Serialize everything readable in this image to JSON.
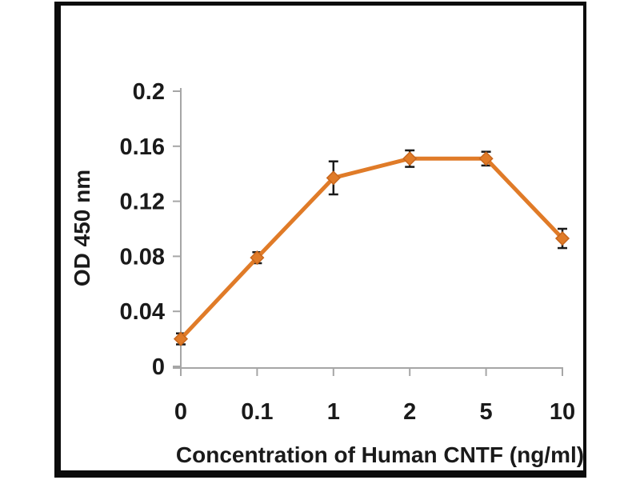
{
  "figure": {
    "frame_color": "#0c0c0c",
    "background": "#ffffff"
  },
  "chart_data": {
    "type": "line",
    "title": "",
    "xlabel": "Concentration of Human CNTF (ng/ml)",
    "ylabel": "OD 450 nm",
    "categories": [
      "0",
      "0.1",
      "1",
      "2",
      "5",
      "10"
    ],
    "series": [
      {
        "name": "OD 450 nm",
        "values": [
          0.02,
          0.079,
          0.137,
          0.151,
          0.151,
          0.093
        ],
        "errors": [
          0.004,
          0.004,
          0.012,
          0.006,
          0.005,
          0.007
        ],
        "color": "#e07b28",
        "marker": "diamond",
        "marker_edge_color": "#c8661c"
      }
    ],
    "ylim": [
      0,
      0.2
    ],
    "yticks": [
      0,
      0.04,
      0.08,
      0.12,
      0.16,
      0.2
    ],
    "ytick_labels": [
      "0",
      "0.04",
      "0.08",
      "0.12",
      "0.16",
      "0.2"
    ],
    "grid": false,
    "legend": "none",
    "axis_color": "#a6a6a6",
    "error_bar_color": "#1a1a1a",
    "tick_label_color": "#1a1a1a"
  }
}
